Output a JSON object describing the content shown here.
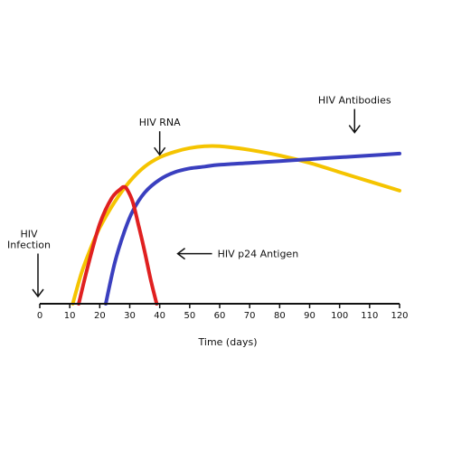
{
  "chart_data": {
    "type": "line",
    "title": "",
    "xlabel": "Time (days)",
    "ylabel": "",
    "xlim": [
      0,
      120
    ],
    "ylim": [
      0,
      1
    ],
    "grid": false,
    "x_ticks": [
      0,
      10,
      20,
      30,
      40,
      50,
      60,
      70,
      80,
      90,
      100,
      110,
      120
    ],
    "series": [
      {
        "name": "HIV RNA",
        "color": "#f5c400",
        "x": [
          11,
          14,
          17,
          20,
          25,
          30,
          35,
          40,
          45,
          50,
          55,
          60,
          70,
          80,
          90,
          100,
          110,
          120
        ],
        "y": [
          0.0,
          0.17,
          0.3,
          0.41,
          0.55,
          0.66,
          0.74,
          0.79,
          0.82,
          0.84,
          0.85,
          0.85,
          0.83,
          0.8,
          0.76,
          0.71,
          0.66,
          0.61
        ]
      },
      {
        "name": "HIV Antibodies",
        "color": "#3a3fbf",
        "x": [
          22,
          25,
          28,
          31,
          35,
          40,
          45,
          50,
          55,
          60,
          70,
          80,
          90,
          100,
          110,
          120
        ],
        "y": [
          0.0,
          0.22,
          0.38,
          0.5,
          0.6,
          0.67,
          0.71,
          0.73,
          0.74,
          0.75,
          0.76,
          0.77,
          0.78,
          0.79,
          0.8,
          0.81
        ]
      },
      {
        "name": "HIV p24 Antigen",
        "color": "#e02020",
        "x": [
          13,
          16,
          20,
          24,
          27,
          28,
          29,
          31,
          33,
          35,
          37,
          39
        ],
        "y": [
          0.0,
          0.2,
          0.43,
          0.57,
          0.62,
          0.63,
          0.62,
          0.55,
          0.42,
          0.28,
          0.13,
          0.0
        ]
      }
    ],
    "annotations": [
      {
        "text": "HIV RNA",
        "x": 40,
        "y": 0.96,
        "arrow": "down"
      },
      {
        "text": "HIV Antibodies",
        "x": 105,
        "y": 1.08,
        "arrow": "down"
      },
      {
        "text": "HIV p24 Antigen",
        "x": 46,
        "y": 0.27,
        "arrow": "left"
      },
      {
        "text": "HIV\nInfection",
        "x": 0,
        "y": 0.3,
        "arrow": "down"
      }
    ]
  }
}
